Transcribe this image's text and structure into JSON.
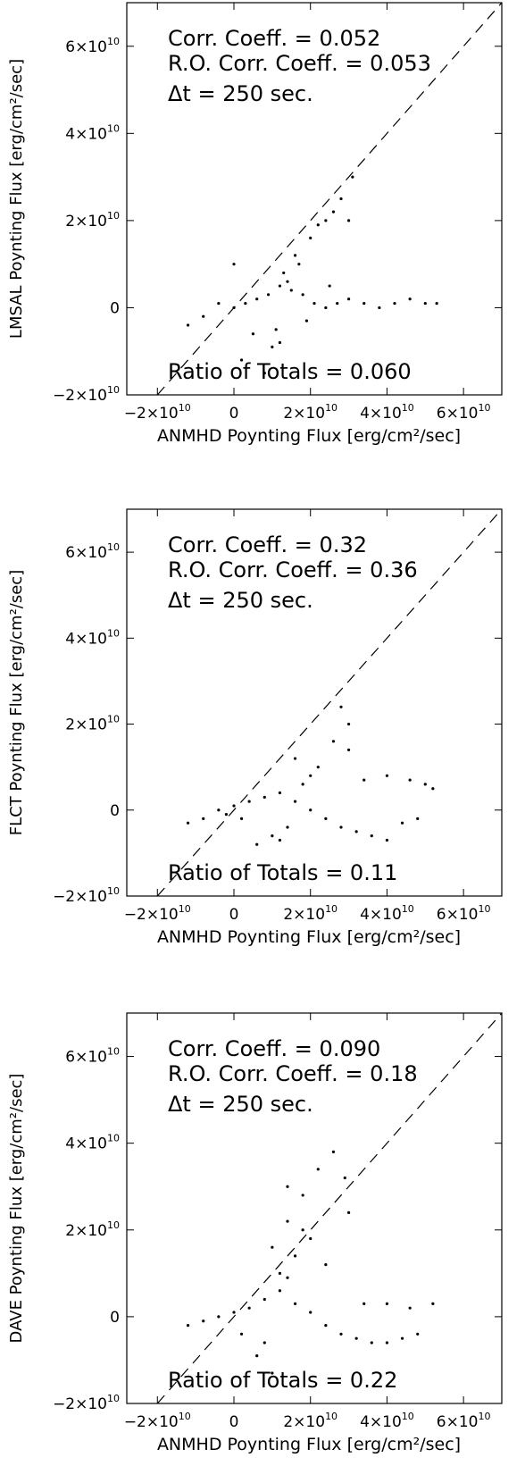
{
  "chart_data": [
    {
      "type": "scatter",
      "xlabel": "ANMHD Poynting Flux [erg/cm²/sec]",
      "ylabel": "LMSAL Poynting Flux [erg/cm²/sec]",
      "xlim": [
        -28000000000.0,
        70000000000.0
      ],
      "ylim": [
        -20000000000.0,
        70000000000.0
      ],
      "x_ticks": [
        {
          "v": -20000000000.0,
          "m": "−2×10",
          "e": "10"
        },
        {
          "v": 0,
          "m": "0",
          "e": ""
        },
        {
          "v": 20000000000.0,
          "m": "2×10",
          "e": "10"
        },
        {
          "v": 40000000000.0,
          "m": "4×10",
          "e": "10"
        },
        {
          "v": 60000000000.0,
          "m": "6×10",
          "e": "10"
        }
      ],
      "y_ticks": [
        {
          "v": -20000000000.0,
          "m": "−2×10",
          "e": "10"
        },
        {
          "v": 0,
          "m": "0",
          "e": ""
        },
        {
          "v": 20000000000.0,
          "m": "2×10",
          "e": "10"
        },
        {
          "v": 40000000000.0,
          "m": "4×10",
          "e": "10"
        },
        {
          "v": 60000000000.0,
          "m": "6×10",
          "e": "10"
        }
      ],
      "annotations": [
        "Corr. Coeff. = 0.052",
        "R.O. Corr. Coeff. = 0.053",
        "Δt =  250 sec."
      ],
      "bottom_annotation": "Ratio of Totals = 0.060",
      "reference_line": "y = x (dashed)",
      "series": [
        {
          "x": [
            -12000000000.0,
            -8000000000.0,
            -4000000000.0,
            0,
            3000000000.0,
            6000000000.0,
            9000000000.0,
            12000000000.0,
            15000000000.0,
            18000000000.0,
            21000000000.0,
            24000000000.0,
            27000000000.0,
            30000000000.0,
            34000000000.0,
            38000000000.0,
            42000000000.0,
            46000000000.0,
            50000000000.0,
            53000000000.0,
            5000000000.0,
            10000000000.0,
            13000000000.0,
            16000000000.0,
            20000000000.0,
            24000000000.0,
            28000000000.0,
            31000000000.0,
            11000000000.0,
            14000000000.0,
            17000000000.0,
            22000000000.0,
            26000000000.0,
            30000000000.0,
            2000000000.0,
            8000000000.0,
            12000000000.0,
            19000000000.0,
            25000000000.0,
            0.0
          ],
          "y": [
            -4000000000.0,
            -2000000000.0,
            1000000000.0,
            0.0,
            1000000000.0,
            2000000000.0,
            3000000000.0,
            5000000000.0,
            4000000000.0,
            3000000000.0,
            1000000000.0,
            0.0,
            1000000000.0,
            2000000000.0,
            1000000000.0,
            0.0,
            1000000000.0,
            2000000000.0,
            1000000000.0,
            1000000000.0,
            -6000000000.0,
            -9000000000.0,
            8000000000.0,
            12000000000.0,
            16000000000.0,
            20000000000.0,
            25000000000.0,
            30000000000.0,
            -5000000000.0,
            6000000000.0,
            10000000000.0,
            19000000000.0,
            22000000000.0,
            20000000000.0,
            -12000000000.0,
            -15000000000.0,
            -8000000000.0,
            -3000000000.0,
            5000000000.0,
            10000000000.0
          ]
        }
      ]
    },
    {
      "type": "scatter",
      "xlabel": "ANMHD Poynting Flux [erg/cm²/sec]",
      "ylabel": "FLCT Poynting Flux [erg/cm²/sec]",
      "xlim": [
        -28000000000.0,
        70000000000.0
      ],
      "ylim": [
        -20000000000.0,
        70000000000.0
      ],
      "x_ticks": [
        {
          "v": -20000000000.0,
          "m": "−2×10",
          "e": "10"
        },
        {
          "v": 0,
          "m": "0",
          "e": ""
        },
        {
          "v": 20000000000.0,
          "m": "2×10",
          "e": "10"
        },
        {
          "v": 40000000000.0,
          "m": "4×10",
          "e": "10"
        },
        {
          "v": 60000000000.0,
          "m": "6×10",
          "e": "10"
        }
      ],
      "y_ticks": [
        {
          "v": -20000000000.0,
          "m": "−2×10",
          "e": "10"
        },
        {
          "v": 0,
          "m": "0",
          "e": ""
        },
        {
          "v": 20000000000.0,
          "m": "2×10",
          "e": "10"
        },
        {
          "v": 40000000000.0,
          "m": "4×10",
          "e": "10"
        },
        {
          "v": 60000000000.0,
          "m": "6×10",
          "e": "10"
        }
      ],
      "annotations": [
        "Corr. Coeff. = 0.32",
        "R.O. Corr. Coeff. = 0.36",
        "Δt =  250 sec."
      ],
      "bottom_annotation": "Ratio of Totals = 0.11",
      "reference_line": "y = x (dashed)",
      "series": [
        {
          "x": [
            -12000000000.0,
            -8000000000.0,
            -4000000000.0,
            0,
            4000000000.0,
            8000000000.0,
            12000000000.0,
            16000000000.0,
            20000000000.0,
            24000000000.0,
            28000000000.0,
            32000000000.0,
            36000000000.0,
            40000000000.0,
            44000000000.0,
            48000000000.0,
            52000000000.0,
            10000000000.0,
            14000000000.0,
            18000000000.0,
            22000000000.0,
            26000000000.0,
            30000000000.0,
            6000000000.0,
            12000000000.0,
            16000000000.0,
            20000000000.0,
            34000000000.0,
            40000000000.0,
            46000000000.0,
            50000000000.0,
            28000000000.0,
            30000000000.0,
            2000000000.0,
            -2000000000.0
          ],
          "y": [
            -3000000000.0,
            -2000000000.0,
            0.0,
            1000000000.0,
            2000000000.0,
            3000000000.0,
            4000000000.0,
            2000000000.0,
            0.0,
            -2000000000.0,
            -4000000000.0,
            -5000000000.0,
            -6000000000.0,
            -7000000000.0,
            -3000000000.0,
            -2000000000.0,
            5000000000.0,
            -6000000000.0,
            -4000000000.0,
            6000000000.0,
            10000000000.0,
            16000000000.0,
            20000000000.0,
            -8000000000.0,
            -7000000000.0,
            12000000000.0,
            8000000000.0,
            7000000000.0,
            8000000000.0,
            7000000000.0,
            6000000000.0,
            24000000000.0,
            14000000000.0,
            -2000000000.0,
            -1000000000.0
          ]
        }
      ]
    },
    {
      "type": "scatter",
      "xlabel": "ANMHD Poynting Flux [erg/cm²/sec]",
      "ylabel": "DAVE Poynting Flux [erg/cm²/sec]",
      "xlim": [
        -28000000000.0,
        70000000000.0
      ],
      "ylim": [
        -20000000000.0,
        70000000000.0
      ],
      "x_ticks": [
        {
          "v": -20000000000.0,
          "m": "−2×10",
          "e": "10"
        },
        {
          "v": 0,
          "m": "0",
          "e": ""
        },
        {
          "v": 20000000000.0,
          "m": "2×10",
          "e": "10"
        },
        {
          "v": 40000000000.0,
          "m": "4×10",
          "e": "10"
        },
        {
          "v": 60000000000.0,
          "m": "6×10",
          "e": "10"
        }
      ],
      "y_ticks": [
        {
          "v": -20000000000.0,
          "m": "−2×10",
          "e": "10"
        },
        {
          "v": 0,
          "m": "0",
          "e": ""
        },
        {
          "v": 20000000000.0,
          "m": "2×10",
          "e": "10"
        },
        {
          "v": 40000000000.0,
          "m": "4×10",
          "e": "10"
        },
        {
          "v": 60000000000.0,
          "m": "6×10",
          "e": "10"
        }
      ],
      "annotations": [
        "Corr. Coeff. = 0.090",
        "R.O. Corr. Coeff. = 0.18",
        "Δt =  250 sec."
      ],
      "bottom_annotation": "Ratio of Totals = 0.22",
      "reference_line": "y = x (dashed)",
      "series": [
        {
          "x": [
            -12000000000.0,
            -8000000000.0,
            -4000000000.0,
            0,
            4000000000.0,
            8000000000.0,
            12000000000.0,
            16000000000.0,
            20000000000.0,
            24000000000.0,
            28000000000.0,
            32000000000.0,
            36000000000.0,
            40000000000.0,
            44000000000.0,
            48000000000.0,
            52000000000.0,
            10000000000.0,
            14000000000.0,
            18000000000.0,
            22000000000.0,
            26000000000.0,
            29000000000.0,
            30000000000.0,
            6000000000.0,
            10000000000.0,
            12000000000.0,
            16000000000.0,
            20000000000.0,
            24000000000.0,
            14000000000.0,
            18000000000.0,
            2000000000.0,
            8000000000.0,
            14000000000.0,
            34000000000.0,
            40000000000.0,
            46000000000.0
          ],
          "y": [
            -2000000000.0,
            -1000000000.0,
            0.0,
            1000000000.0,
            2000000000.0,
            4000000000.0,
            6000000000.0,
            3000000000.0,
            1000000000.0,
            -2000000000.0,
            -4000000000.0,
            -5000000000.0,
            -6000000000.0,
            -6000000000.0,
            -5000000000.0,
            -4000000000.0,
            3000000000.0,
            16000000000.0,
            22000000000.0,
            28000000000.0,
            34000000000.0,
            38000000000.0,
            32000000000.0,
            24000000000.0,
            -9000000000.0,
            -13000000000.0,
            10000000000.0,
            14000000000.0,
            18000000000.0,
            12000000000.0,
            30000000000.0,
            20000000000.0,
            -4000000000.0,
            -6000000000.0,
            9000000000.0,
            3000000000.0,
            3000000000.0,
            2000000000.0
          ]
        }
      ]
    }
  ]
}
